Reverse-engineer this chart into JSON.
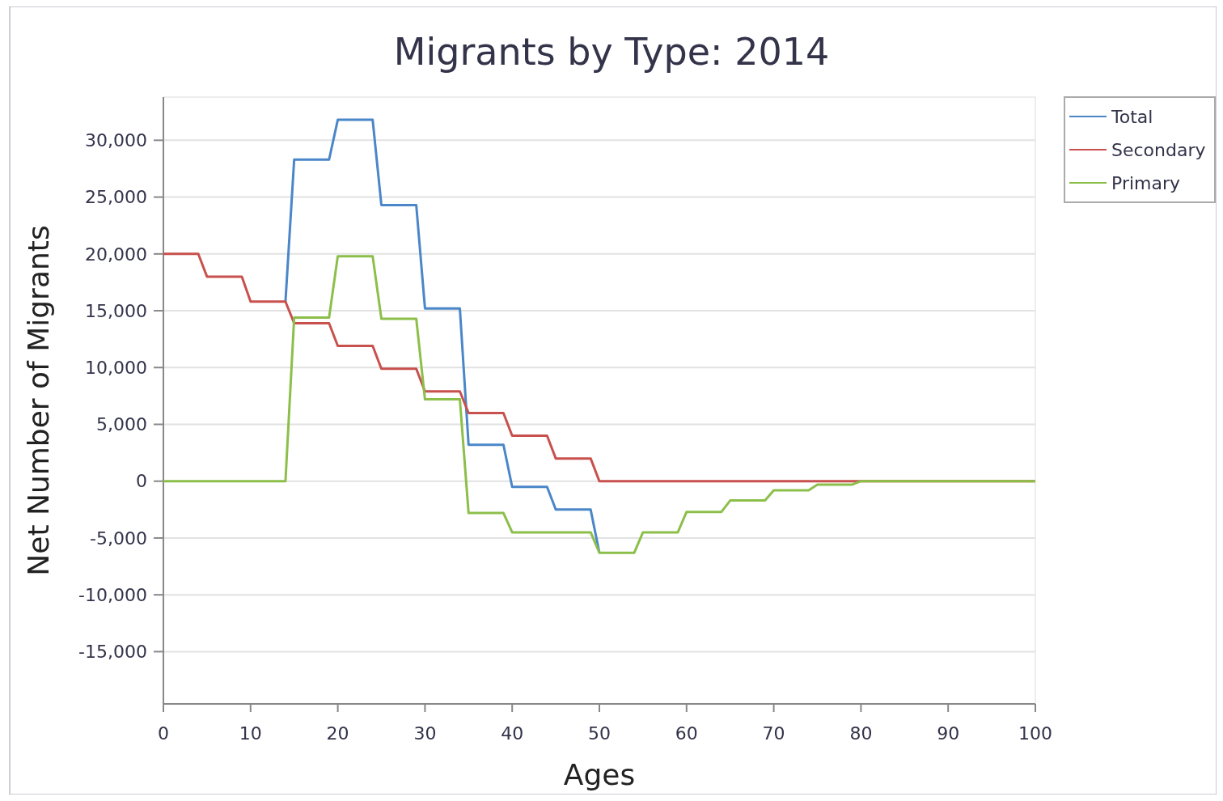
{
  "chart_data": {
    "type": "line",
    "title": "Migrants by Type: 2014",
    "xlabel": "Ages",
    "ylabel": "Net Number of Migrants",
    "x": [
      0,
      4,
      5,
      9,
      10,
      14,
      15,
      19,
      20,
      24,
      25,
      29,
      30,
      34,
      35,
      39,
      40,
      44,
      45,
      49,
      50,
      54,
      55,
      59,
      60,
      64,
      65,
      69,
      70,
      74,
      75,
      79,
      80,
      100
    ],
    "series": [
      {
        "name": "Total",
        "color": "#4a86c8",
        "values": [
          null,
          null,
          null,
          null,
          null,
          15800,
          28300,
          28300,
          31800,
          31800,
          24300,
          24300,
          15200,
          15200,
          3200,
          3200,
          -500,
          -500,
          -2500,
          -2500,
          -6300,
          null,
          null,
          null,
          null,
          null,
          null,
          null,
          null,
          null,
          null,
          null,
          null,
          null
        ]
      },
      {
        "name": "Secondary",
        "color": "#c8504d",
        "values": [
          20000,
          20000,
          18000,
          18000,
          15800,
          15800,
          13900,
          13900,
          11900,
          11900,
          9900,
          9900,
          7900,
          7900,
          6000,
          6000,
          4000,
          4000,
          2000,
          2000,
          0,
          0,
          0,
          0,
          0,
          0,
          0,
          0,
          0,
          0,
          0,
          0,
          0,
          0
        ]
      },
      {
        "name": "Primary",
        "color": "#8cbf4a",
        "values": [
          0,
          0,
          0,
          0,
          0,
          0,
          14400,
          14400,
          19800,
          19800,
          14300,
          14300,
          7200,
          7200,
          -2800,
          -2800,
          -4500,
          -4500,
          -4500,
          -4500,
          -6300,
          -6300,
          -4500,
          -4500,
          -2700,
          -2700,
          -1700,
          -1700,
          -800,
          -800,
          -300,
          -300,
          0,
          0
        ]
      }
    ],
    "xlim": [
      0,
      100
    ],
    "xticks": [
      0,
      10,
      20,
      30,
      40,
      50,
      60,
      70,
      80,
      90,
      100
    ],
    "ylim": [
      -19600,
      33800
    ],
    "yticks": [
      {
        "value": -15000,
        "label": "-15,000"
      },
      {
        "value": -10000,
        "label": "-10,000"
      },
      {
        "value": -5000,
        "label": "-5,000"
      },
      0,
      {
        "value": 5000,
        "label": "5,000"
      },
      {
        "value": 10000,
        "label": "10,000"
      },
      {
        "value": 15000,
        "label": "15,000"
      },
      {
        "value": 20000,
        "label": "20,000"
      },
      {
        "value": 25000,
        "label": "25,000"
      },
      {
        "value": 30000,
        "label": "30,000"
      }
    ],
    "grid": "y",
    "legend": "top right",
    "line_style": "solid"
  }
}
